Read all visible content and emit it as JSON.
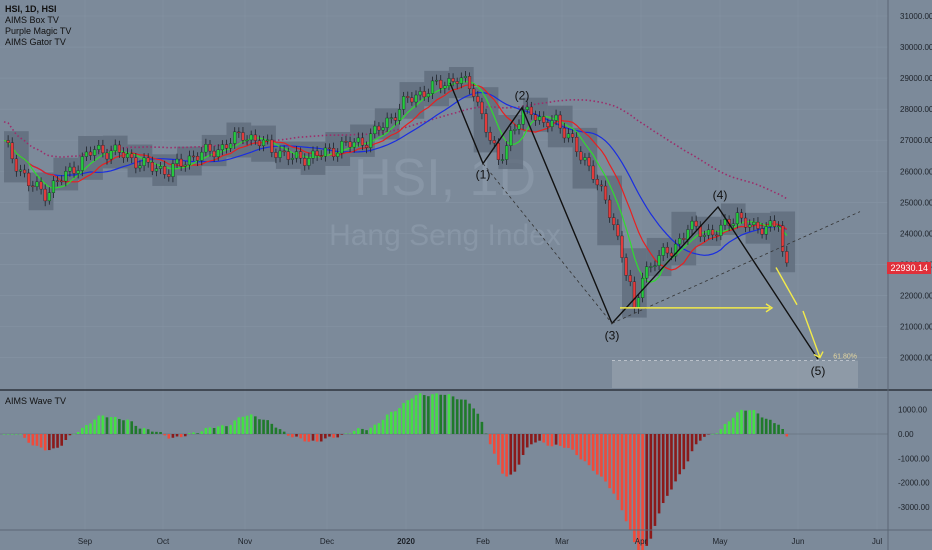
{
  "header": {
    "symbol": "HSI, 1D, HSI",
    "indicators": [
      "AIMS Box TV",
      "Purple Magic TV",
      "AIMS Gator TV"
    ]
  },
  "watermark": {
    "ticker": "HSI, 1D",
    "name": "Hang Seng Index"
  },
  "colors": {
    "background": "#7c8a9a",
    "up_candle": "#25c93e",
    "down_candle": "#e23b3b",
    "blue_line": "#1a2ee0",
    "red_line": "#e82020",
    "green_line": "#2fdc2f",
    "purple_line": "#9c2d6b",
    "wave_up": "#44e044",
    "wave_down": "#f04a3a",
    "projection": "#f2ea4a"
  },
  "chart_data": [
    {
      "type": "candlestick",
      "ylim": [
        19300,
        31500
      ],
      "y_ticks": [
        20000,
        21000,
        22000,
        23000,
        24000,
        25000,
        26000,
        27000,
        28000,
        29000,
        30000,
        31000
      ],
      "y_tick_labels": [
        "20000.00",
        "21000.00",
        "22000.00",
        "23000.00",
        "24000.00",
        "25000.00",
        "26000.00",
        "27000.00",
        "28000.00",
        "29000.00",
        "30000.00",
        "31000.00"
      ],
      "x_tick_labels": [
        "Sep",
        "Oct",
        "Nov",
        "Dec",
        "2020",
        "Feb",
        "Mar",
        "Apr",
        "May",
        "Jun",
        "Jul"
      ],
      "last_price": 22930.14,
      "last_price_label": "22930.14",
      "wave_labels": [
        {
          "label": "(1)",
          "value": 26250
        },
        {
          "label": "(2)",
          "value": 28050
        },
        {
          "label": "(3)",
          "value": 21100
        },
        {
          "label": "(4)",
          "value": 24850
        },
        {
          "label": "(5)",
          "value": 19950
        }
      ],
      "fib_label": "61.80%",
      "fib_level": 19900
    },
    {
      "type": "histogram",
      "title": "AIMS Wave TV",
      "ylim": [
        -3500,
        1300
      ],
      "y_ticks": [
        1000,
        0,
        -1000,
        -2000,
        -3000
      ],
      "y_tick_labels": [
        "1000.00",
        "0.00",
        "-1000.00",
        "-2000.00",
        "-3000.00"
      ]
    }
  ]
}
